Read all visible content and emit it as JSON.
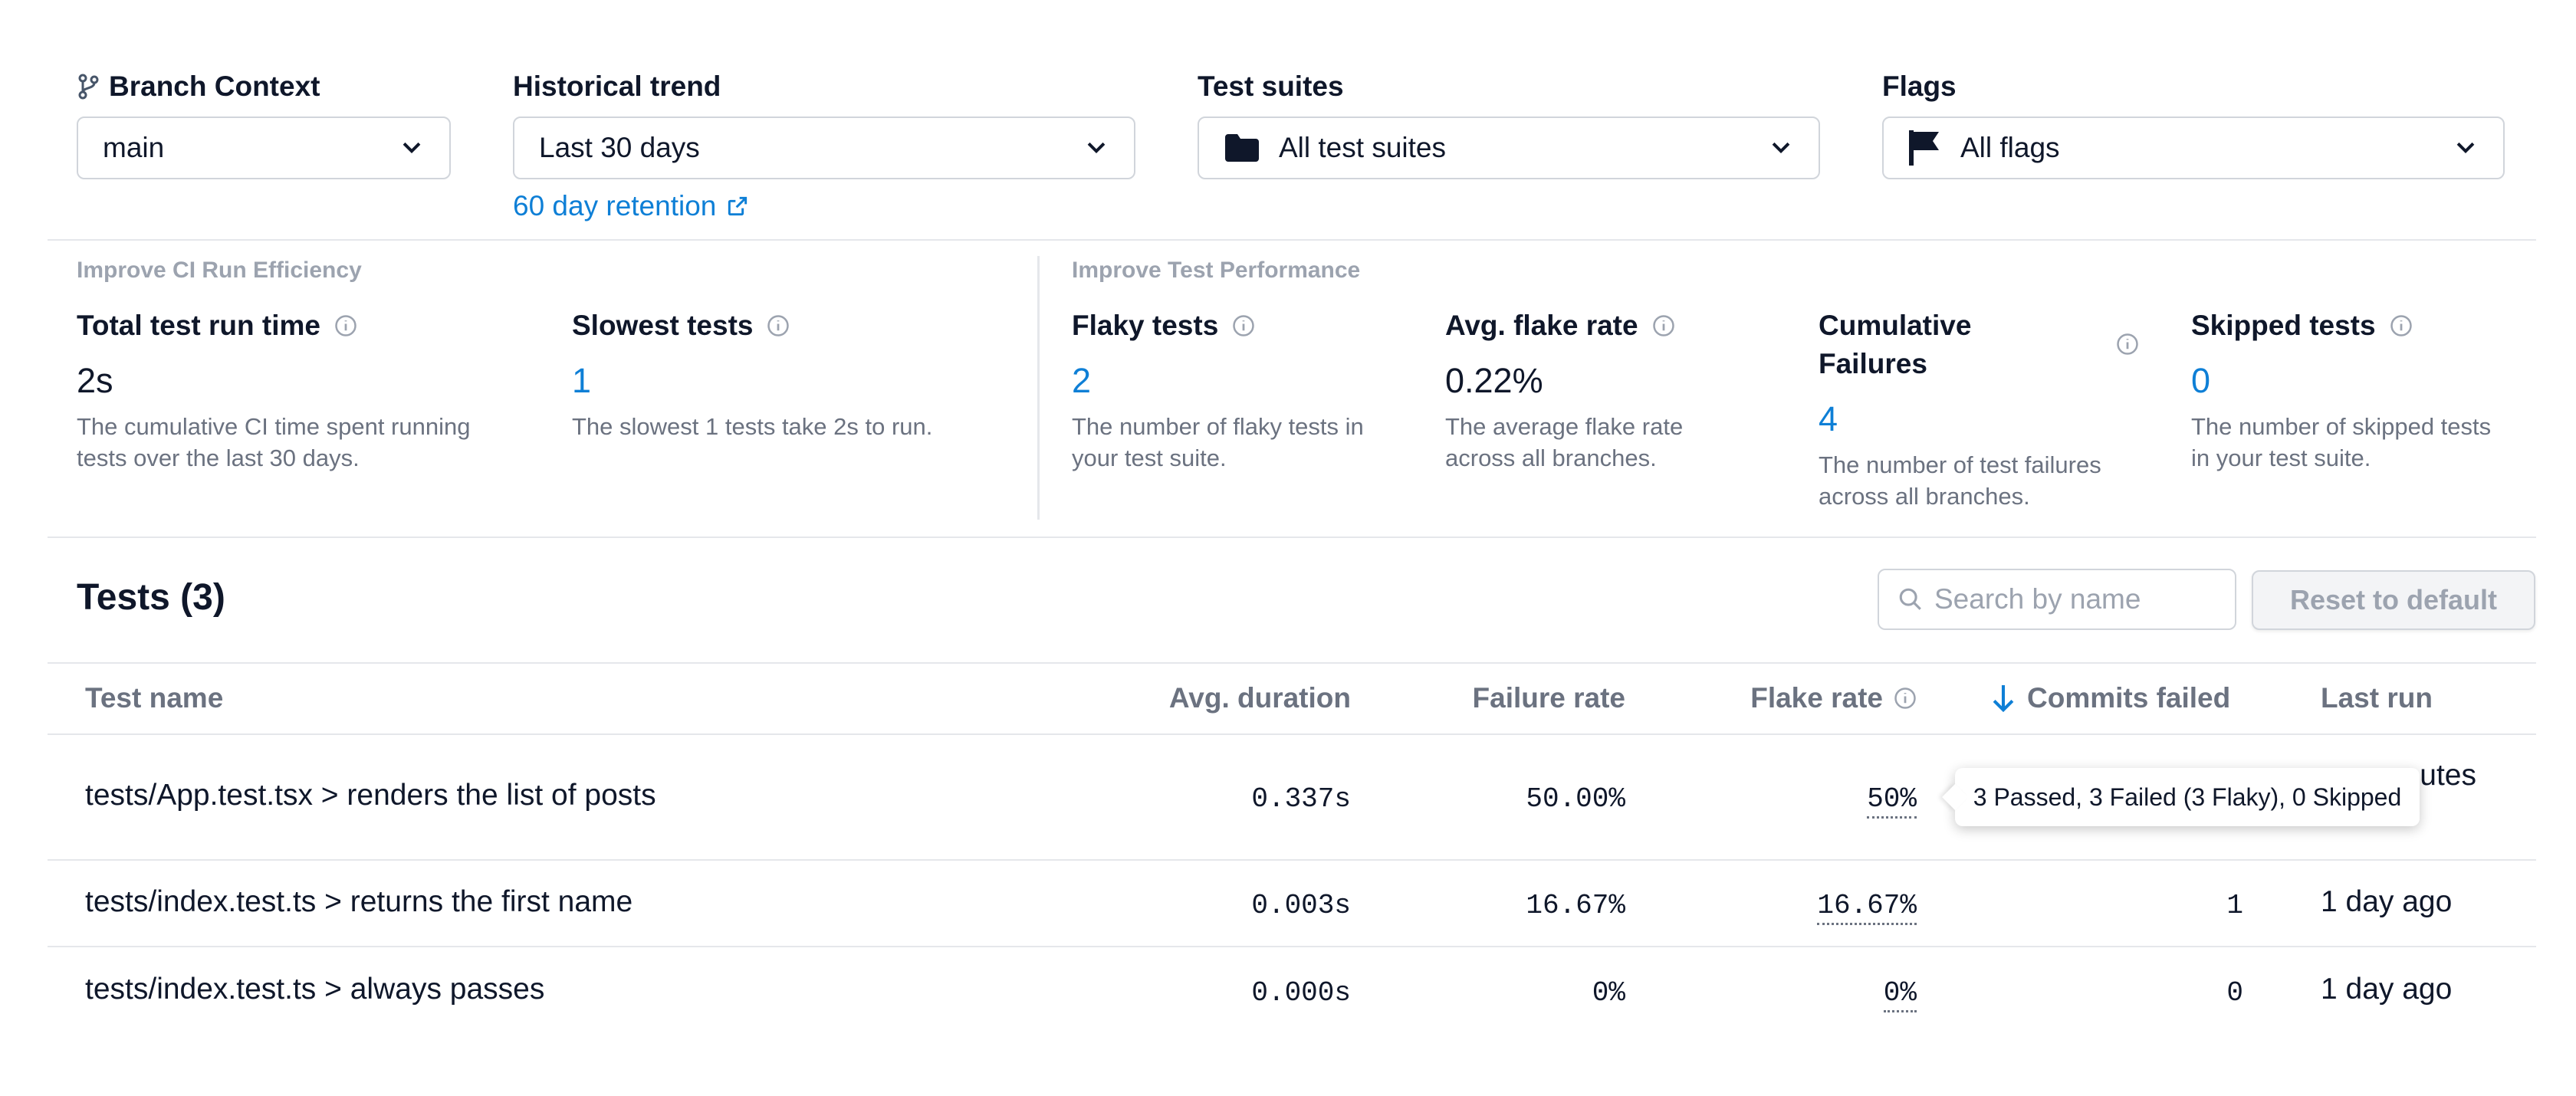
{
  "filters": {
    "branch": {
      "label": "Branch Context",
      "value": "main"
    },
    "trend": {
      "label": "Historical trend",
      "value": "Last 30 days",
      "retention_link": "60 day retention"
    },
    "suites": {
      "label": "Test suites",
      "value": "All test suites"
    },
    "flags": {
      "label": "Flags",
      "value": "All flags"
    }
  },
  "metrics": {
    "ci_group_title": "Improve CI Run Efficiency",
    "perf_group_title": "Improve Test Performance",
    "total_run_time": {
      "title": "Total test run time",
      "value": "2s",
      "desc": "The cumulative CI time spent running tests over the last 30 days."
    },
    "slowest": {
      "title": "Slowest tests",
      "value": "1",
      "desc": "The slowest 1 tests take 2s to run."
    },
    "flaky": {
      "title": "Flaky tests",
      "value": "2",
      "desc": "The number of flaky tests in your test suite."
    },
    "avg_flake_rate": {
      "title": "Avg. flake rate",
      "value": "0.22%",
      "desc": "The average flake rate across all branches."
    },
    "cumulative_failures": {
      "title": "Cumulative Failures",
      "value": "4",
      "desc": "The number of test failures across all branches."
    },
    "skipped": {
      "title": "Skipped tests",
      "value": "0",
      "desc": "The number of skipped tests in your test suite."
    }
  },
  "tests": {
    "title": "Tests (3)",
    "search_placeholder": "Search by name",
    "reset_label": "Reset to default",
    "columns": {
      "name": "Test name",
      "avg_duration": "Avg. duration",
      "failure_rate": "Failure rate",
      "flake_rate": "Flake rate",
      "commits_failed": "Commits failed",
      "last_run": "Last run"
    },
    "rows": [
      {
        "name": "tests/App.test.tsx > renders the list of posts",
        "avg_duration": "0.337s",
        "failure_rate": "50.00%",
        "flake_rate": "50%",
        "commits_failed": "",
        "last_run": "utes"
      },
      {
        "name": "tests/index.test.ts > returns the first name",
        "avg_duration": "0.003s",
        "failure_rate": "16.67%",
        "flake_rate": "16.67%",
        "commits_failed": "1",
        "last_run": "1 day ago"
      },
      {
        "name": "tests/index.test.ts > always passes",
        "avg_duration": "0.000s",
        "failure_rate": "0%",
        "flake_rate": "0%",
        "commits_failed": "0",
        "last_run": "1 day ago"
      }
    ],
    "tooltip": "3 Passed, 3 Failed (3 Flaky), 0 Skipped"
  },
  "colors": {
    "link": "#0e7fd6",
    "muted": "#6b7280",
    "border": "#d1d5db"
  }
}
